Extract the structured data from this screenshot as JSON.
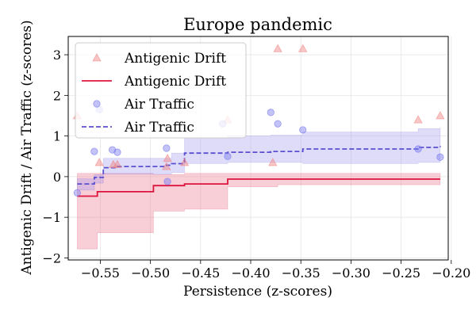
{
  "chart_data": {
    "type": "scatter",
    "title": "Europe pandemic",
    "xlabel": "Persistence (z-scores)",
    "ylabel": "Antigenic Drift / Air Traffic (z-scores)",
    "xlim": [
      -0.582,
      -0.203
    ],
    "ylim": [
      -2.05,
      3.45
    ],
    "xticks": [
      -0.55,
      -0.5,
      -0.45,
      -0.4,
      -0.35,
      -0.3,
      -0.25,
      -0.2
    ],
    "xtick_labels": [
      "−0.55",
      "−0.50",
      "−0.45",
      "−0.40",
      "−0.35",
      "−0.30",
      "−0.25",
      "−0.20"
    ],
    "yticks": [
      -2,
      -1,
      0,
      1,
      2,
      3
    ],
    "ytick_labels": [
      "−2",
      "−1",
      "0",
      "1",
      "2",
      "3"
    ],
    "grid": true,
    "legend_position": "top-left",
    "series": [
      {
        "name": "Antigenic Drift",
        "kind": "scatter",
        "marker": "triangle",
        "color": "#f08080",
        "points": [
          [
            -0.573,
            1.5
          ],
          [
            -0.551,
            0.35
          ],
          [
            -0.537,
            0.3
          ],
          [
            -0.533,
            0.3
          ],
          [
            -0.484,
            0.25
          ],
          [
            -0.483,
            0.45
          ],
          [
            -0.466,
            0.35
          ],
          [
            -0.423,
            1.4
          ],
          [
            -0.378,
            0.35
          ],
          [
            -0.373,
            3.15
          ],
          [
            -0.348,
            3.15
          ],
          [
            -0.233,
            1.4
          ],
          [
            -0.211,
            1.5
          ]
        ]
      },
      {
        "name": "Antigenic Drift",
        "kind": "step",
        "style": "solid",
        "color": "#dc143c",
        "x": [
          -0.573,
          -0.56,
          -0.553,
          -0.533,
          -0.497,
          -0.484,
          -0.466,
          -0.423,
          -0.373,
          -0.348,
          -0.233,
          -0.211
        ],
        "y": [
          -0.48,
          -0.48,
          -0.37,
          -0.37,
          -0.22,
          -0.22,
          -0.18,
          -0.06,
          -0.06,
          -0.06,
          -0.06,
          -0.06
        ],
        "band_lower": [
          -1.78,
          -1.78,
          -1.38,
          -1.38,
          -0.85,
          -0.85,
          -0.8,
          -0.25,
          -0.2,
          -0.2,
          -0.2,
          -0.2
        ],
        "band_upper": [
          0.08,
          0.08,
          0.08,
          0.08,
          0.05,
          0.05,
          0.08,
          0.08,
          0.08,
          0.08,
          0.08,
          0.08
        ]
      },
      {
        "name": "Air Traffic",
        "kind": "scatter",
        "marker": "circle",
        "color": "#7b7bf0",
        "points": [
          [
            -0.573,
            -0.4
          ],
          [
            -0.556,
            0.62
          ],
          [
            -0.551,
            1.65
          ],
          [
            -0.538,
            0.66
          ],
          [
            -0.533,
            0.6
          ],
          [
            -0.484,
            0.7
          ],
          [
            -0.483,
            -0.12
          ],
          [
            -0.428,
            1.3
          ],
          [
            -0.423,
            0.5
          ],
          [
            -0.38,
            1.58
          ],
          [
            -0.373,
            1.3
          ],
          [
            -0.348,
            1.15
          ],
          [
            -0.233,
            0.68
          ],
          [
            -0.211,
            0.48
          ]
        ]
      },
      {
        "name": "Air Traffic",
        "kind": "step",
        "style": "dashed",
        "color": "#5a4fcf",
        "x": [
          -0.573,
          -0.556,
          -0.547,
          -0.533,
          -0.484,
          -0.479,
          -0.466,
          -0.423,
          -0.38,
          -0.348,
          -0.233,
          -0.211
        ],
        "y": [
          -0.18,
          -0.02,
          0.22,
          0.25,
          0.28,
          0.32,
          0.58,
          0.6,
          0.62,
          0.68,
          0.72,
          0.75
        ],
        "band_lower": [
          -0.33,
          -0.16,
          0.06,
          0.06,
          0.06,
          0.1,
          0.32,
          0.35,
          0.35,
          0.32,
          0.35,
          0.35
        ],
        "band_upper": [
          -0.05,
          0.05,
          0.45,
          0.45,
          0.45,
          0.58,
          0.95,
          1.0,
          1.02,
          1.1,
          1.18,
          1.22
        ]
      }
    ]
  }
}
